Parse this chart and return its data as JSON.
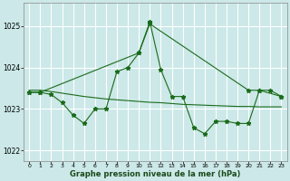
{
  "xlabel": "Graphe pression niveau de la mer (hPa)",
  "bg_color": "#cce8e8",
  "grid_color": "#ffffff",
  "line_color": "#1a6b1a",
  "ylim": [
    1021.75,
    1025.55
  ],
  "yticks": [
    1022,
    1023,
    1024,
    1025
  ],
  "xticks": [
    0,
    1,
    2,
    3,
    4,
    5,
    6,
    7,
    8,
    9,
    10,
    11,
    12,
    13,
    14,
    15,
    16,
    17,
    18,
    19,
    20,
    21,
    22,
    23
  ],
  "series_jagged_x": [
    0,
    1,
    2,
    3,
    4,
    5,
    6,
    7,
    8,
    9,
    10,
    11,
    12,
    13,
    14,
    15,
    16,
    17,
    18,
    19,
    20,
    21,
    22,
    23
  ],
  "series_jagged_y": [
    1023.4,
    1023.4,
    1023.35,
    1023.15,
    1022.85,
    1022.65,
    1023.0,
    1023.0,
    1023.9,
    1024.0,
    1024.35,
    1025.1,
    1023.95,
    1023.3,
    1023.3,
    1022.55,
    1022.4,
    1022.7,
    1022.7,
    1022.65,
    1022.65,
    1023.45,
    1023.45,
    1023.3
  ],
  "series_flat_x": [
    0,
    1,
    2,
    3,
    4,
    5,
    6,
    7,
    8,
    9,
    10,
    11,
    12,
    13,
    14,
    15,
    16,
    17,
    18,
    19,
    20,
    21,
    22,
    23
  ],
  "series_flat_y": [
    1023.45,
    1023.45,
    1023.42,
    1023.38,
    1023.34,
    1023.3,
    1023.27,
    1023.24,
    1023.22,
    1023.2,
    1023.18,
    1023.16,
    1023.15,
    1023.13,
    1023.11,
    1023.1,
    1023.09,
    1023.08,
    1023.07,
    1023.06,
    1023.06,
    1023.05,
    1023.05,
    1023.05
  ],
  "series_sparse_x": [
    0,
    1,
    10,
    11,
    20,
    21,
    23
  ],
  "series_sparse_y": [
    1023.4,
    1023.4,
    1024.35,
    1025.05,
    1023.45,
    1023.45,
    1023.3
  ]
}
